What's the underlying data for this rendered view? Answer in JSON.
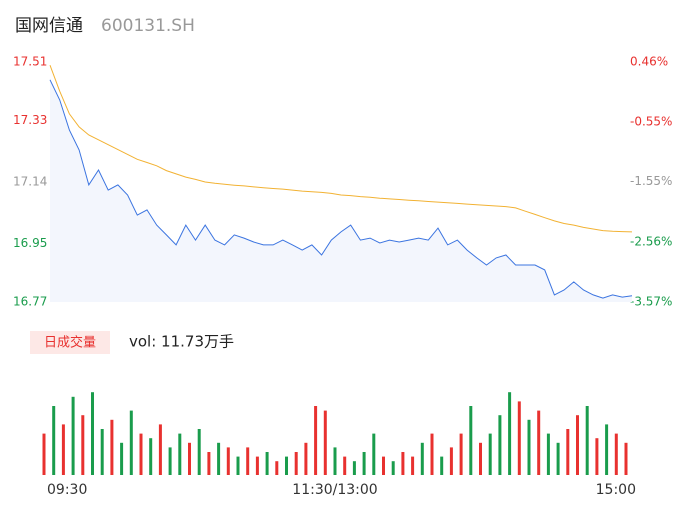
{
  "header": {
    "name": "国网信通",
    "code": "600131.SH"
  },
  "chart_data": [
    {
      "type": "line",
      "x": [
        0,
        4,
        8,
        12,
        16,
        20,
        24,
        28,
        32,
        36,
        40,
        44,
        48,
        52,
        56,
        60,
        64,
        68,
        72,
        76,
        80,
        84,
        88,
        92,
        96,
        100,
        104,
        108,
        112,
        116,
        120,
        124,
        128,
        132,
        136,
        140,
        144,
        148,
        152,
        156,
        160,
        164,
        168,
        172,
        176,
        180,
        184,
        188,
        192,
        196,
        200,
        204,
        208,
        212,
        216,
        220,
        224,
        228,
        232,
        236,
        240
      ],
      "xlim": [
        0,
        240
      ],
      "ylim": [
        16.77,
        17.51
      ],
      "yticks": [
        17.51,
        17.33,
        17.14,
        16.95,
        16.77
      ],
      "ytick_colors": [
        "#e8312f",
        "#e8312f",
        "#999999",
        "#1a9c4c",
        "#1a9c4c"
      ],
      "y2lim": [
        -3.57,
        0.46
      ],
      "y2ticks": [
        {
          "value": 0.46,
          "label": "0.46%"
        },
        {
          "value": -0.55,
          "label": "-0.55%"
        },
        {
          "value": -1.55,
          "label": "-1.55%"
        },
        {
          "value": -2.56,
          "label": "-2.56%"
        },
        {
          "value": -3.57,
          "label": "-3.57%"
        }
      ],
      "series": [
        {
          "color": "#3b74e0",
          "values": [
            17.455,
            17.393,
            17.3,
            17.239,
            17.131,
            17.177,
            17.115,
            17.131,
            17.1,
            17.038,
            17.054,
            17.007,
            16.977,
            16.946,
            17.007,
            16.961,
            17.007,
            16.961,
            16.946,
            16.977,
            16.967,
            16.955,
            16.946,
            16.946,
            16.961,
            16.946,
            16.93,
            16.946,
            16.915,
            16.961,
            16.986,
            17.007,
            16.961,
            16.967,
            16.952,
            16.961,
            16.955,
            16.961,
            16.967,
            16.961,
            16.998,
            16.946,
            16.961,
            16.93,
            16.906,
            16.884,
            16.906,
            16.915,
            16.884,
            16.884,
            16.884,
            16.869,
            16.792,
            16.807,
            16.832,
            16.807,
            16.792,
            16.782,
            16.792,
            16.785,
            16.789
          ]
        },
        {
          "color": "#f2b233",
          "values": [
            17.5,
            17.42,
            17.35,
            17.31,
            17.285,
            17.27,
            17.255,
            17.24,
            17.225,
            17.21,
            17.2,
            17.19,
            17.175,
            17.165,
            17.155,
            17.148,
            17.14,
            17.136,
            17.133,
            17.13,
            17.128,
            17.125,
            17.122,
            17.12,
            17.118,
            17.115,
            17.112,
            17.11,
            17.108,
            17.105,
            17.1,
            17.098,
            17.095,
            17.093,
            17.09,
            17.088,
            17.086,
            17.084,
            17.082,
            17.08,
            17.078,
            17.076,
            17.074,
            17.072,
            17.07,
            17.068,
            17.066,
            17.064,
            17.06,
            17.05,
            17.04,
            17.03,
            17.02,
            17.012,
            17.007,
            17.0,
            16.995,
            16.99,
            16.988,
            16.987,
            16.986
          ]
        }
      ]
    },
    {
      "type": "bar",
      "legend_badge": "日成交量",
      "volume_text": "vol: 11.73万手",
      "x": [
        0,
        4,
        8,
        12,
        16,
        20,
        24,
        28,
        32,
        36,
        40,
        44,
        48,
        52,
        56,
        60,
        64,
        68,
        72,
        76,
        80,
        84,
        88,
        92,
        96,
        100,
        104,
        108,
        112,
        116,
        120,
        124,
        128,
        132,
        136,
        140,
        144,
        148,
        152,
        156,
        160,
        164,
        168,
        172,
        176,
        180,
        184,
        188,
        192,
        196,
        200,
        204,
        208,
        212,
        216,
        220,
        224,
        228,
        232,
        236,
        240
      ],
      "xlim": [
        0,
        240
      ],
      "ylim": [
        0,
        2000
      ],
      "xticks": [
        {
          "value": 0,
          "label": "09:30"
        },
        {
          "value": 120,
          "label": "11:30/13:00"
        },
        {
          "value": 240,
          "label": "15:00"
        }
      ],
      "values": [
        900,
        1500,
        1100,
        1700,
        1300,
        1800,
        1000,
        1200,
        700,
        1400,
        900,
        800,
        1100,
        600,
        900,
        700,
        1000,
        500,
        700,
        600,
        400,
        600,
        400,
        500,
        300,
        400,
        500,
        700,
        1500,
        1400,
        600,
        400,
        300,
        500,
        900,
        400,
        300,
        500,
        400,
        700,
        900,
        400,
        600,
        900,
        1500,
        700,
        900,
        1300,
        1800,
        1600,
        1200,
        1400,
        900,
        700,
        1000,
        1300,
        1500,
        800,
        1100,
        900,
        700
      ],
      "colors": [
        "#e8312f",
        "#1a9c4c",
        "#e8312f",
        "#1a9c4c",
        "#e8312f",
        "#1a9c4c",
        "#1a9c4c",
        "#e8312f",
        "#1a9c4c",
        "#1a9c4c",
        "#e8312f",
        "#1a9c4c",
        "#e8312f",
        "#1a9c4c",
        "#1a9c4c",
        "#e8312f",
        "#1a9c4c",
        "#e8312f",
        "#1a9c4c",
        "#e8312f",
        "#1a9c4c",
        "#e8312f",
        "#e8312f",
        "#1a9c4c",
        "#e8312f",
        "#1a9c4c",
        "#e8312f",
        "#e8312f",
        "#e8312f",
        "#e8312f",
        "#1a9c4c",
        "#e8312f",
        "#1a9c4c",
        "#1a9c4c",
        "#1a9c4c",
        "#e8312f",
        "#1a9c4c",
        "#e8312f",
        "#e8312f",
        "#1a9c4c",
        "#e8312f",
        "#1a9c4c",
        "#e8312f",
        "#e8312f",
        "#1a9c4c",
        "#e8312f",
        "#1a9c4c",
        "#1a9c4c",
        "#1a9c4c",
        "#e8312f",
        "#1a9c4c",
        "#e8312f",
        "#1a9c4c",
        "#1a9c4c",
        "#e8312f",
        "#e8312f",
        "#1a9c4c",
        "#e8312f",
        "#1a9c4c",
        "#e8312f",
        "#e8312f"
      ]
    }
  ]
}
